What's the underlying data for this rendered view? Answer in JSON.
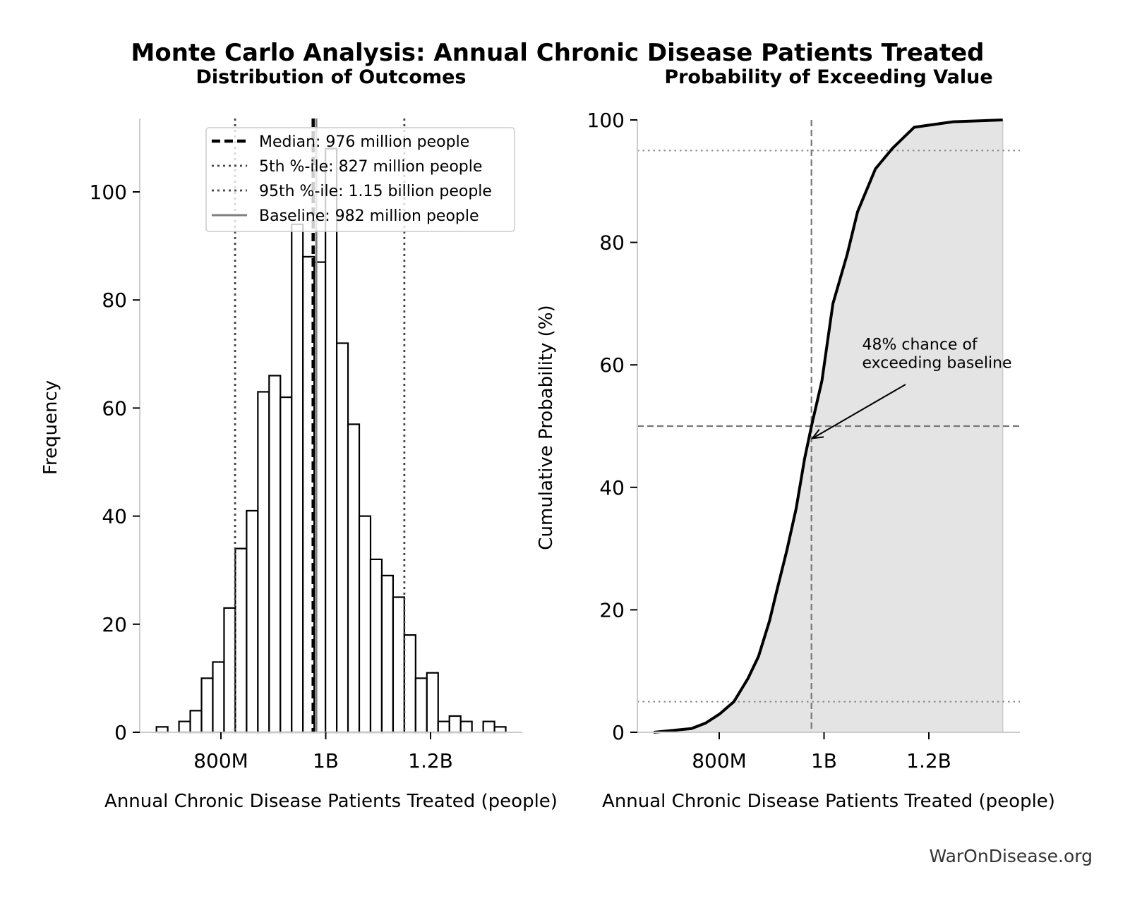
{
  "title": "Monte Carlo Analysis: Annual Chronic Disease Patients Treated",
  "watermark": "WarOnDisease.org",
  "chart_data": [
    {
      "type": "bar",
      "subtitle": "Distribution of Outcomes",
      "xlabel": "Annual Chronic Disease Patients Treated (people)",
      "ylabel": "Frequency",
      "xlim": [
        650,
        1380
      ],
      "ylim": [
        0,
        113.6
      ],
      "xticks": [
        {
          "v": 800,
          "label": "800M"
        },
        {
          "v": 1000,
          "label": "1B"
        },
        {
          "v": 1200,
          "label": "1.2B"
        }
      ],
      "yticks": [
        0,
        20,
        40,
        60,
        80,
        100
      ],
      "bin_start": 677,
      "bin_width": 21.5,
      "values": [
        1,
        0,
        2,
        4,
        10,
        13,
        23,
        34,
        41,
        63,
        66,
        62,
        94,
        88,
        87,
        108,
        72,
        57,
        40,
        32,
        29,
        25,
        18,
        10,
        11,
        2,
        3,
        2,
        0,
        2,
        1
      ],
      "grid": false,
      "legend_placement": "top-right",
      "reference_lines": [
        {
          "name": "Median: 976 million people",
          "x": 976,
          "style": "dashed",
          "color": "#000000"
        },
        {
          "name": "5th %-ile: 827 million people",
          "x": 827,
          "style": "dotted",
          "color": "#444444"
        },
        {
          "name": "95th %-ile: 1.15 billion people",
          "x": 1150,
          "style": "dotted",
          "color": "#444444"
        },
        {
          "name": "Baseline: 982 million people",
          "x": 982,
          "style": "solid",
          "color": "#808080"
        }
      ]
    },
    {
      "type": "line",
      "subtitle": "Probability of Exceeding Value",
      "xlabel": "Annual Chronic Disease Patients Treated (people)",
      "ylabel": "Cumulative Probability (%)",
      "xlim": [
        650,
        1380
      ],
      "ylim": [
        0,
        100
      ],
      "xticks": [
        {
          "v": 800,
          "label": "800M"
        },
        {
          "v": 1000,
          "label": "1B"
        },
        {
          "v": 1200,
          "label": "1.2B"
        }
      ],
      "yticks": [
        0,
        20,
        40,
        60,
        80,
        100
      ],
      "grid": false,
      "fill_color": "#e4e4e4",
      "points": [
        [
          675,
          0
        ],
        [
          747,
          0.6
        ],
        [
          774,
          1.5
        ],
        [
          801,
          3
        ],
        [
          828,
          5
        ],
        [
          855,
          8.8
        ],
        [
          875,
          12.4
        ],
        [
          896,
          18.2
        ],
        [
          909,
          22.8
        ],
        [
          929,
          29.7
        ],
        [
          947,
          36.6
        ],
        [
          963,
          44.7
        ],
        [
          976,
          50
        ],
        [
          996,
          57.4
        ],
        [
          1017,
          70
        ],
        [
          1044,
          78
        ],
        [
          1064,
          85
        ],
        [
          1098,
          92
        ],
        [
          1131,
          95.4
        ],
        [
          1172,
          98.8
        ],
        [
          1246,
          99.7
        ],
        [
          1341,
          100
        ]
      ],
      "reference_lines": [
        {
          "x": 976,
          "style": "dashed"
        },
        {
          "y": 50,
          "style": "dashed"
        },
        {
          "y": 5,
          "style": "dotted"
        },
        {
          "y": 95,
          "style": "dotted"
        }
      ],
      "annotation": {
        "lines": [
          "48% chance of",
          "exceeding baseline"
        ],
        "point": [
          982,
          48
        ],
        "text_at": [
          1070,
          62.5
        ]
      }
    }
  ]
}
